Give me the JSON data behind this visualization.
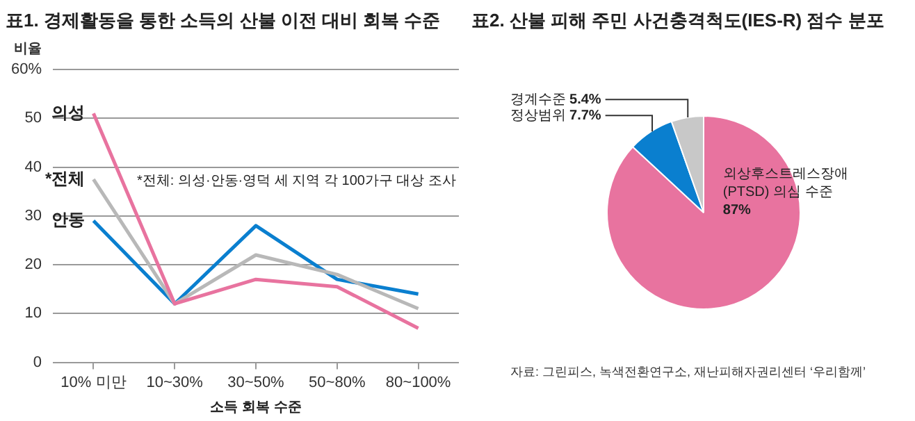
{
  "chart_data": [
    {
      "type": "line",
      "title": "표1. 경제활동을 통한 소득의 산불 이전 대비 회복 수준",
      "xlabel": "소득 회복 수준",
      "ylabel": "비율",
      "categories": [
        "10% 미만",
        "10~30%",
        "30~50%",
        "50~80%",
        "80~100%"
      ],
      "series": [
        {
          "name": "의성",
          "color": "#e8739f",
          "values": [
            51,
            12,
            17,
            15.5,
            7
          ]
        },
        {
          "name": "*전체",
          "color": "#b8b8b8",
          "values": [
            37.5,
            12,
            22,
            18,
            11
          ]
        },
        {
          "name": "안동",
          "color": "#0a7fcf",
          "values": [
            29,
            12,
            28,
            17,
            14
          ]
        }
      ],
      "ylim": [
        0,
        60
      ],
      "yticks": [
        0,
        10,
        20,
        30,
        40,
        50,
        {
          "value": 60,
          "label": "60%"
        }
      ],
      "grid": "y",
      "legend": false,
      "marker": "none",
      "line_style": "solid",
      "annotations": [
        "*전체: 의성·안동·영덕 세 지역 각 100가구 대상 조사"
      ]
    },
    {
      "type": "pie",
      "title": "표2. 산불 피해 주민 사건충격척도(IES-R) 점수 분포",
      "categories": [
        "외상후스트레스장애 (PTSD) 의심 수준",
        "정상범위",
        "경계수준"
      ],
      "values": [
        87,
        7.7,
        5.4
      ],
      "value_labels": [
        "87%",
        "7.7%",
        "5.4%"
      ],
      "colors": [
        "#e8739f",
        "#0a7fcf",
        "#c8c8c8"
      ],
      "legend": false,
      "annotations": [
        "자료: 그린피스, 녹색전환연구소, 재난피해자권리센터 ‘우리함께’"
      ]
    }
  ]
}
